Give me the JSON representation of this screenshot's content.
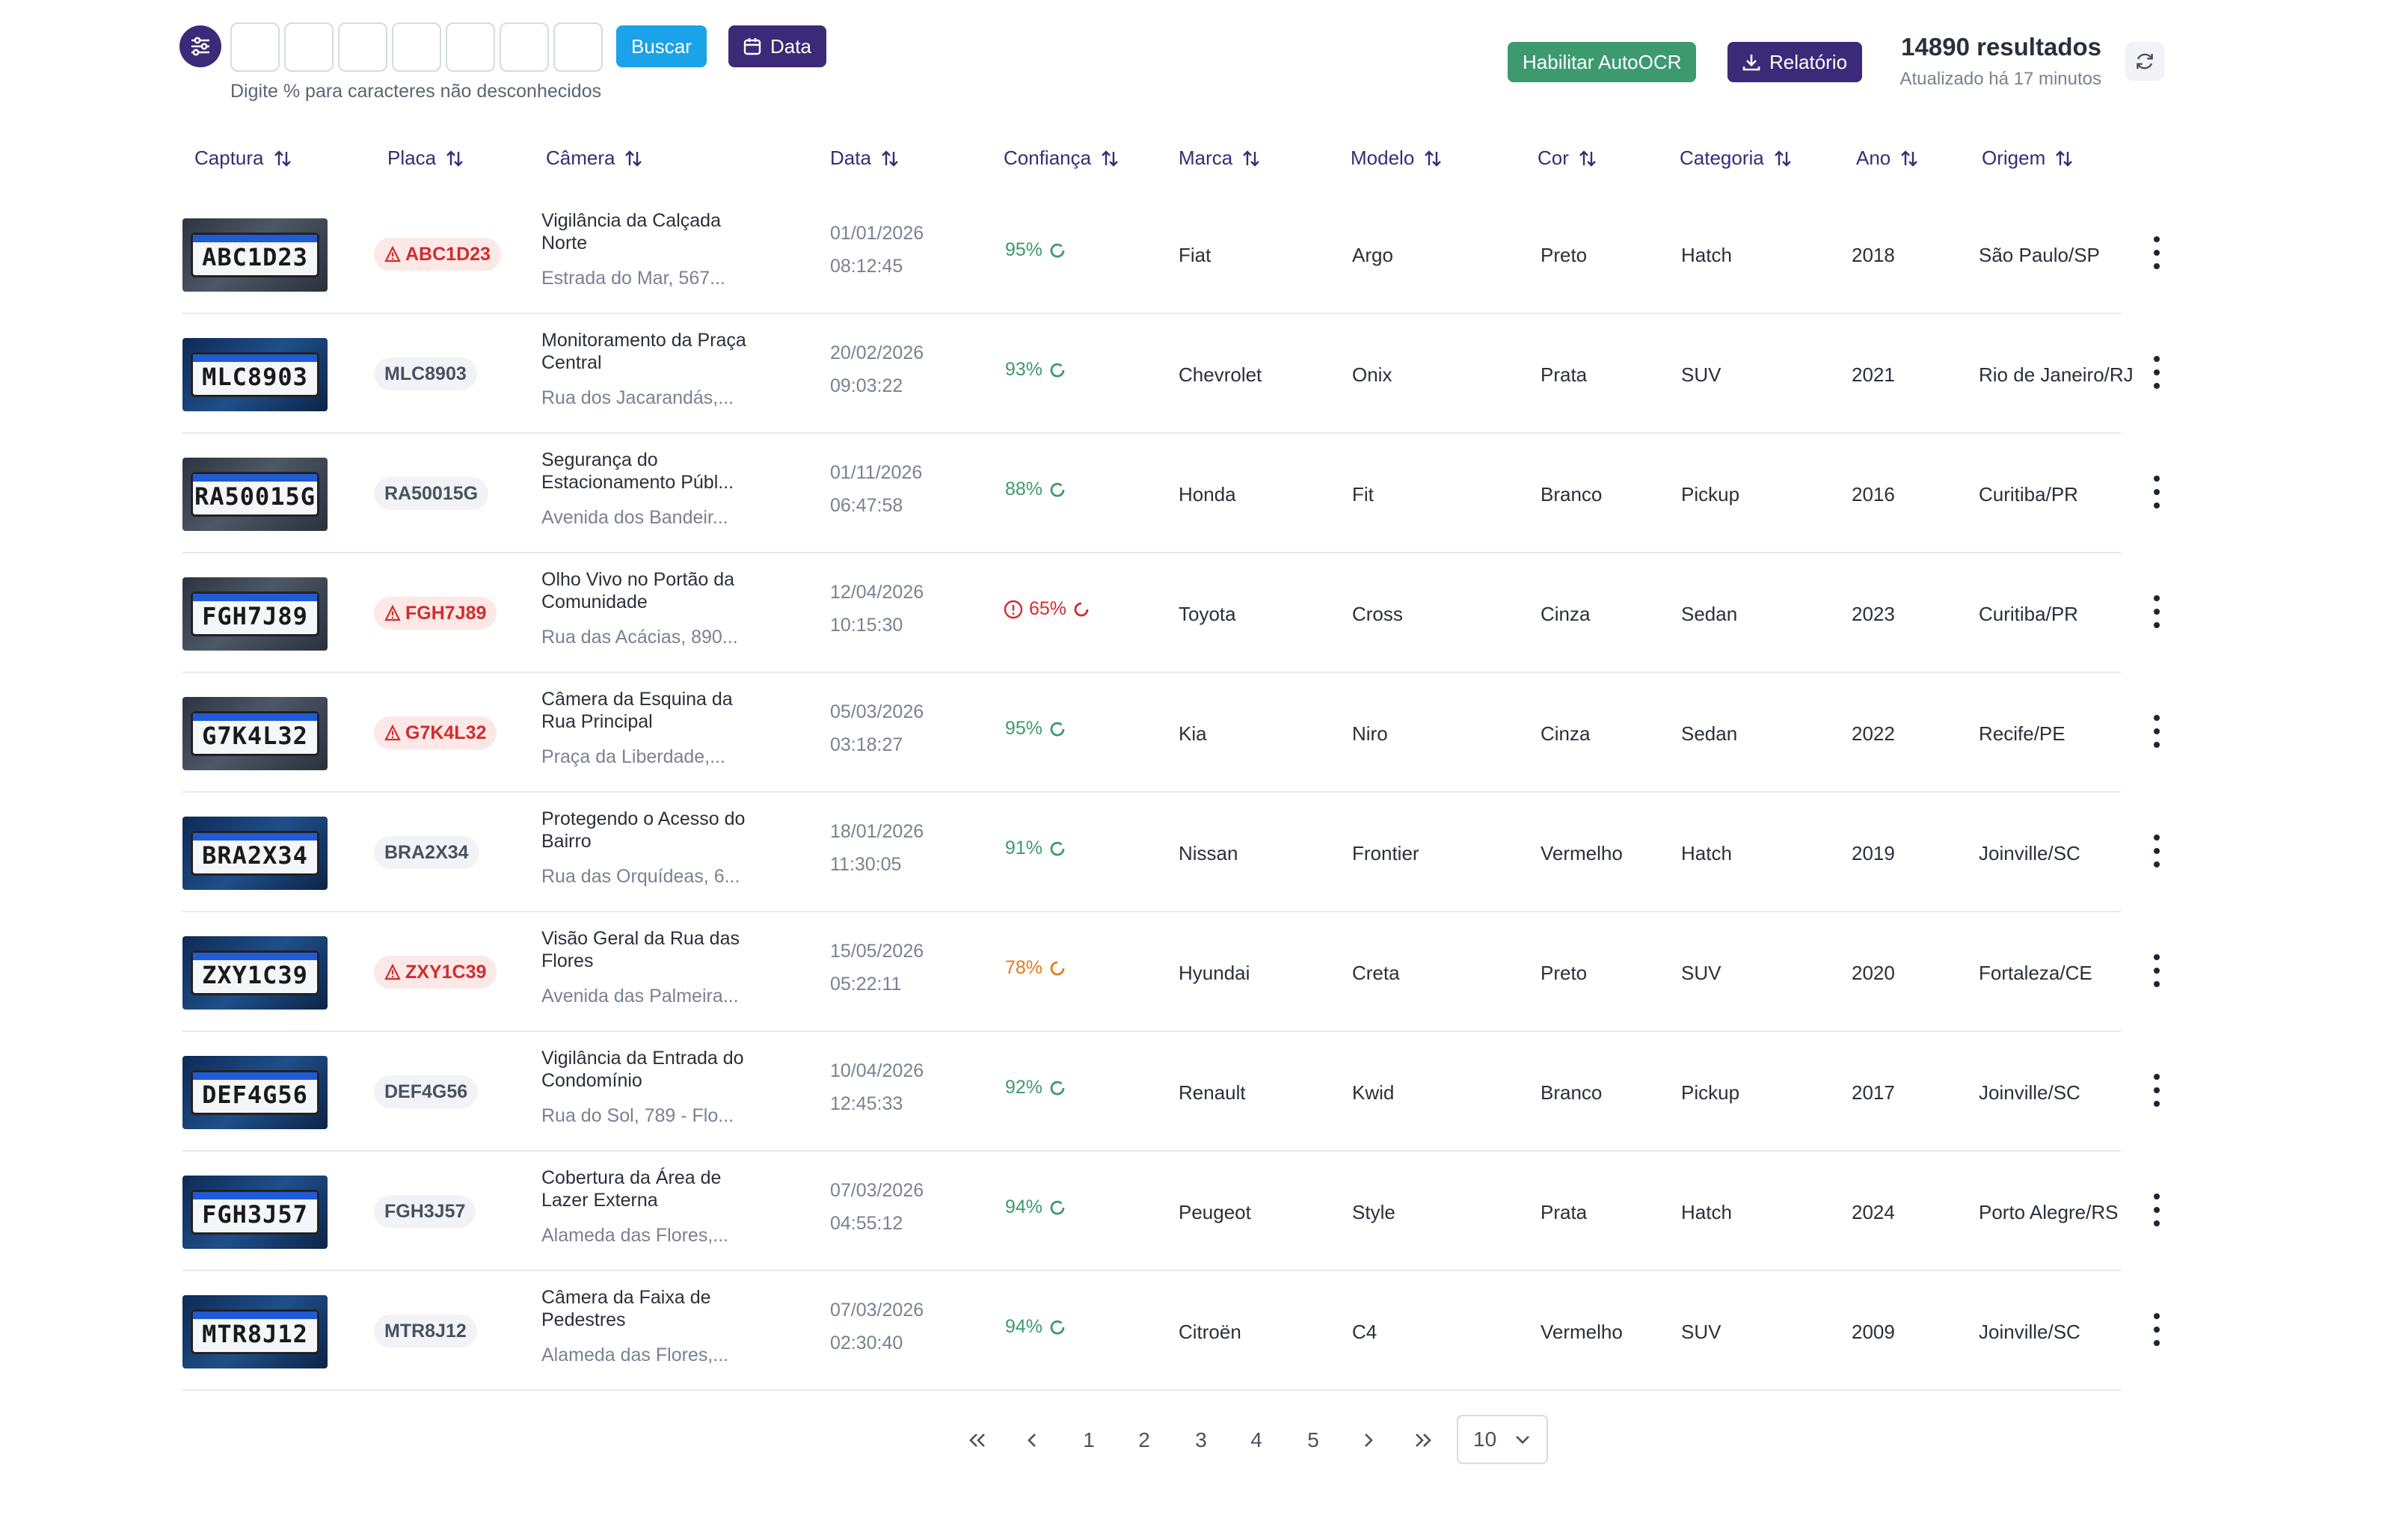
{
  "toolbar": {
    "hint": "Digite % para caracteres não desconhecidos",
    "search_label": "Buscar",
    "date_label": "Data",
    "autoocr_label": "Habilitar AutoOCR",
    "report_label": "Relatório",
    "results_count": "14890 resultados",
    "updated": "Atualizado há 17 minutos",
    "plate_char_values": [
      "",
      "",
      "",
      "",
      "",
      "",
      ""
    ]
  },
  "columns": [
    "Captura",
    "Placa",
    "Câmera",
    "Data",
    "Confiança",
    "Marca",
    "Modelo",
    "Cor",
    "Categoria",
    "Ano",
    "Origem"
  ],
  "rows": [
    {
      "plate_text": "ABC1D23",
      "plate": "ABC1D23",
      "alert": true,
      "camera": "Vigilância da Calçada Norte",
      "address": "Estrada do Mar, 567...",
      "date": "01/01/2026",
      "time": "08:12:45",
      "confidence": "95%",
      "conf_level": "good",
      "brand": "Fiat",
      "model": "Argo",
      "color": "Preto",
      "category": "Hatch",
      "year": "2018",
      "origin": "São Paulo/SP",
      "thumb": "dark"
    },
    {
      "plate_text": "MLC8903",
      "plate": "MLC8903",
      "alert": false,
      "camera": "Monitoramento da Praça Central",
      "address": "Rua dos Jacarandás,...",
      "date": "20/02/2026",
      "time": "09:03:22",
      "confidence": "93%",
      "conf_level": "good",
      "brand": "Chevrolet",
      "model": "Onix",
      "color": "Prata",
      "category": "SUV",
      "year": "2021",
      "origin": "Rio de Janeiro/RJ",
      "thumb": "blue"
    },
    {
      "plate_text": "RA50015G",
      "plate": "RA50015G",
      "alert": false,
      "camera": "Segurança do Estacionamento Públ...",
      "address": "Avenida dos Bandeir...",
      "date": "01/11/2026",
      "time": "06:47:58",
      "confidence": "88%",
      "conf_level": "good",
      "brand": "Honda",
      "model": "Fit",
      "color": "Branco",
      "category": "Pickup",
      "year": "2016",
      "origin": "Curitiba/PR",
      "thumb": "dark"
    },
    {
      "plate_text": "FGH7J89",
      "plate": "FGH7J89",
      "alert": true,
      "camera": "Olho Vivo no Portão da Comunidade",
      "address": "Rua das Acácias, 890...",
      "date": "12/04/2026",
      "time": "10:15:30",
      "confidence": "65%",
      "conf_level": "low",
      "brand": "Toyota",
      "model": "Cross",
      "color": "Cinza",
      "category": "Sedan",
      "year": "2023",
      "origin": "Curitiba/PR",
      "thumb": "dark"
    },
    {
      "plate_text": "G7K4L32",
      "plate": "G7K4L32",
      "alert": true,
      "camera": "Câmera da Esquina da Rua Principal",
      "address": "Praça da Liberdade,...",
      "date": "05/03/2026",
      "time": "03:18:27",
      "confidence": "95%",
      "conf_level": "good",
      "brand": "Kia",
      "model": "Niro",
      "color": "Cinza",
      "category": "Sedan",
      "year": "2022",
      "origin": "Recife/PE",
      "thumb": "dark"
    },
    {
      "plate_text": "BRA2X34",
      "plate": "BRA2X34",
      "alert": false,
      "camera": "Protegendo o Acesso do Bairro",
      "address": "Rua das Orquídeas, 6...",
      "date": "18/01/2026",
      "time": "11:30:05",
      "confidence": "91%",
      "conf_level": "good",
      "brand": "Nissan",
      "model": "Frontier",
      "color": "Vermelho",
      "category": "Hatch",
      "year": "2019",
      "origin": "Joinville/SC",
      "thumb": "blue"
    },
    {
      "plate_text": "ZXY1C39",
      "plate": "ZXY1C39",
      "alert": true,
      "camera": "Visão Geral da Rua das Flores",
      "address": "Avenida das Palmeira...",
      "date": "15/05/2026",
      "time": "05:22:11",
      "confidence": "78%",
      "conf_level": "mid",
      "brand": "Hyundai",
      "model": "Creta",
      "color": "Preto",
      "category": "SUV",
      "year": "2020",
      "origin": "Fortaleza/CE",
      "thumb": "blue"
    },
    {
      "plate_text": "DEF4G56",
      "plate": "DEF4G56",
      "alert": false,
      "camera": "Vigilância da Entrada do Condomínio",
      "address": "Rua do Sol, 789 - Flo...",
      "date": "10/04/2026",
      "time": "12:45:33",
      "confidence": "92%",
      "conf_level": "good",
      "brand": "Renault",
      "model": "Kwid",
      "color": "Branco",
      "category": "Pickup",
      "year": "2017",
      "origin": "Joinville/SC",
      "thumb": "blue"
    },
    {
      "plate_text": "FGH3J57",
      "plate": "FGH3J57",
      "alert": false,
      "camera": "Cobertura da Área de Lazer Externa",
      "address": "Alameda das Flores,...",
      "date": "07/03/2026",
      "time": "04:55:12",
      "confidence": "94%",
      "conf_level": "good",
      "brand": "Peugeot",
      "model": "Style",
      "color": "Prata",
      "category": "Hatch",
      "year": "2024",
      "origin": "Porto Alegre/RS",
      "thumb": "blue"
    },
    {
      "plate_text": "MTR8J12",
      "plate": "MTR8J12",
      "alert": false,
      "camera": "Câmera da Faixa de Pedestres",
      "address": "Alameda das Flores,...",
      "date": "07/03/2026",
      "time": "02:30:40",
      "confidence": "94%",
      "conf_level": "good",
      "brand": "Citroën",
      "model": "C4",
      "color": "Vermelho",
      "category": "SUV",
      "year": "2009",
      "origin": "Joinville/SC",
      "thumb": "blue"
    }
  ],
  "pagination": {
    "pages": [
      "1",
      "2",
      "3",
      "4",
      "5"
    ],
    "page_size": "10"
  },
  "colors": {
    "accent": "#3b2a78",
    "search_button": "#1aa3e8",
    "autoocr_button": "#3d9a6e",
    "alert": "#d22c2c",
    "confidence_good": "#3d9a6e",
    "confidence_mid": "#e07b1a"
  },
  "icons": [
    "sliders-icon",
    "calendar-icon",
    "download-icon",
    "refresh-icon",
    "sort-icon",
    "warning-icon",
    "spinner-icon",
    "kebab-icon",
    "chevron-double-left-icon",
    "chevron-left-icon",
    "chevron-right-icon",
    "chevron-double-right-icon",
    "chevron-down-icon"
  ]
}
